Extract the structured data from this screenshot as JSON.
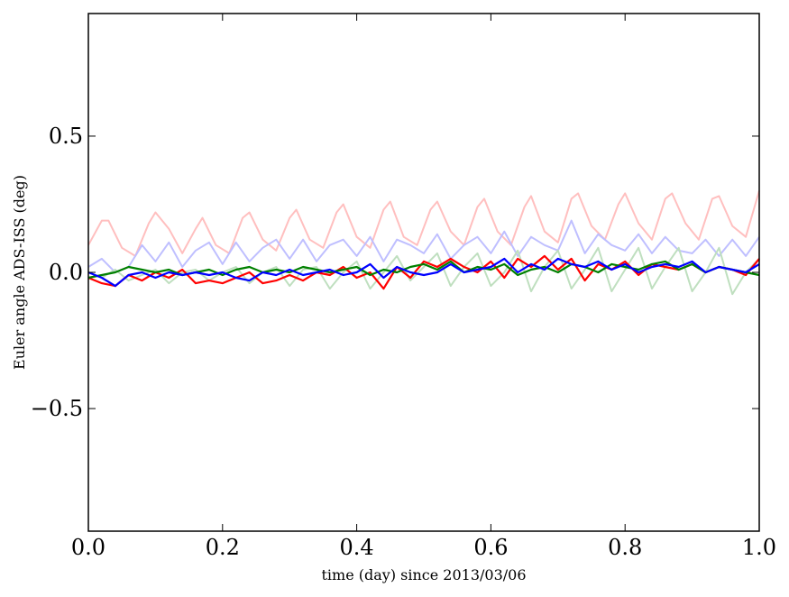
{
  "chart_data": {
    "type": "line",
    "title": "",
    "xlabel": "time (day) since 2013/03/06",
    "ylabel": "Euler angle ADS-ISS (deg)",
    "xlim": [
      0.0,
      1.0
    ],
    "ylim": [
      -0.95,
      0.95
    ],
    "xticks": [
      0.0,
      0.2,
      0.4,
      0.6,
      0.8,
      1.0
    ],
    "xtick_labels": [
      "0.0",
      "0.2",
      "0.4",
      "0.6",
      "0.8",
      "1.0"
    ],
    "yticks": [
      -0.5,
      0.0,
      0.5
    ],
    "ytick_labels": [
      "−0.5",
      "0.0",
      "0.5"
    ],
    "grid": false,
    "legend": "none",
    "series": [
      {
        "color": "#ffbfbf",
        "x": [
          0.0,
          0.02,
          0.03,
          0.05,
          0.07,
          0.09,
          0.1,
          0.12,
          0.14,
          0.16,
          0.17,
          0.19,
          0.21,
          0.23,
          0.24,
          0.26,
          0.28,
          0.3,
          0.31,
          0.33,
          0.35,
          0.37,
          0.38,
          0.4,
          0.42,
          0.44,
          0.45,
          0.47,
          0.49,
          0.51,
          0.52,
          0.54,
          0.56,
          0.58,
          0.59,
          0.61,
          0.63,
          0.65,
          0.66,
          0.68,
          0.7,
          0.72,
          0.73,
          0.75,
          0.77,
          0.79,
          0.8,
          0.82,
          0.84,
          0.86,
          0.87,
          0.89,
          0.91,
          0.93,
          0.94,
          0.96,
          0.98,
          1.0
        ],
        "y": [
          0.1,
          0.19,
          0.19,
          0.09,
          0.06,
          0.18,
          0.22,
          0.16,
          0.07,
          0.16,
          0.2,
          0.1,
          0.07,
          0.2,
          0.22,
          0.12,
          0.08,
          0.2,
          0.23,
          0.12,
          0.09,
          0.22,
          0.25,
          0.13,
          0.09,
          0.23,
          0.26,
          0.13,
          0.1,
          0.23,
          0.26,
          0.15,
          0.1,
          0.24,
          0.27,
          0.15,
          0.1,
          0.24,
          0.28,
          0.15,
          0.11,
          0.27,
          0.29,
          0.17,
          0.12,
          0.25,
          0.29,
          0.18,
          0.12,
          0.27,
          0.29,
          0.18,
          0.12,
          0.27,
          0.28,
          0.17,
          0.13,
          0.3
        ]
      },
      {
        "color": "#bfbfff",
        "x": [
          0.0,
          0.02,
          0.04,
          0.06,
          0.08,
          0.1,
          0.12,
          0.14,
          0.16,
          0.18,
          0.2,
          0.22,
          0.24,
          0.26,
          0.28,
          0.3,
          0.32,
          0.34,
          0.36,
          0.38,
          0.4,
          0.42,
          0.44,
          0.46,
          0.48,
          0.5,
          0.52,
          0.54,
          0.56,
          0.58,
          0.6,
          0.62,
          0.64,
          0.66,
          0.68,
          0.7,
          0.72,
          0.74,
          0.76,
          0.78,
          0.8,
          0.82,
          0.84,
          0.86,
          0.88,
          0.9,
          0.92,
          0.94,
          0.96,
          0.98,
          1.0
        ],
        "y": [
          0.02,
          0.05,
          0.0,
          0.02,
          0.1,
          0.04,
          0.11,
          0.02,
          0.08,
          0.11,
          0.03,
          0.11,
          0.04,
          0.09,
          0.12,
          0.05,
          0.12,
          0.04,
          0.1,
          0.12,
          0.06,
          0.13,
          0.04,
          0.12,
          0.1,
          0.07,
          0.14,
          0.05,
          0.1,
          0.13,
          0.07,
          0.15,
          0.06,
          0.13,
          0.1,
          0.08,
          0.19,
          0.07,
          0.14,
          0.1,
          0.08,
          0.14,
          0.07,
          0.13,
          0.08,
          0.07,
          0.12,
          0.06,
          0.12,
          0.06,
          0.13
        ]
      },
      {
        "color": "#bfdfbf",
        "x": [
          0.0,
          0.02,
          0.04,
          0.06,
          0.08,
          0.1,
          0.12,
          0.14,
          0.16,
          0.18,
          0.2,
          0.22,
          0.24,
          0.26,
          0.28,
          0.3,
          0.32,
          0.34,
          0.36,
          0.38,
          0.4,
          0.42,
          0.44,
          0.46,
          0.48,
          0.5,
          0.52,
          0.54,
          0.56,
          0.58,
          0.6,
          0.62,
          0.64,
          0.66,
          0.68,
          0.7,
          0.72,
          0.74,
          0.76,
          0.78,
          0.8,
          0.82,
          0.84,
          0.86,
          0.88,
          0.9,
          0.92,
          0.94,
          0.96,
          0.98,
          1.0
        ],
        "y": [
          0.0,
          -0.02,
          0.01,
          -0.03,
          -0.01,
          0.01,
          -0.04,
          0.0,
          0.01,
          -0.03,
          0.0,
          0.02,
          -0.04,
          0.0,
          0.02,
          -0.05,
          0.01,
          0.02,
          -0.06,
          0.0,
          0.04,
          -0.06,
          0.0,
          0.06,
          -0.03,
          0.02,
          0.07,
          -0.05,
          0.02,
          0.07,
          -0.05,
          0.0,
          0.08,
          -0.07,
          0.02,
          0.08,
          -0.06,
          0.01,
          0.09,
          -0.07,
          0.01,
          0.09,
          -0.06,
          0.02,
          0.09,
          -0.07,
          0.0,
          0.09,
          -0.08,
          0.0,
          0.05
        ]
      },
      {
        "color": "#ff0000",
        "x": [
          0.0,
          0.02,
          0.04,
          0.06,
          0.08,
          0.1,
          0.12,
          0.14,
          0.16,
          0.18,
          0.2,
          0.22,
          0.24,
          0.26,
          0.28,
          0.3,
          0.32,
          0.34,
          0.36,
          0.38,
          0.4,
          0.42,
          0.44,
          0.46,
          0.48,
          0.5,
          0.52,
          0.54,
          0.56,
          0.58,
          0.6,
          0.62,
          0.64,
          0.66,
          0.68,
          0.7,
          0.72,
          0.74,
          0.76,
          0.78,
          0.8,
          0.82,
          0.84,
          0.86,
          0.88,
          0.9,
          0.92,
          0.94,
          0.96,
          0.98,
          1.0
        ],
        "y": [
          -0.02,
          -0.04,
          -0.05,
          -0.01,
          -0.03,
          0.0,
          -0.02,
          0.01,
          -0.04,
          -0.03,
          -0.04,
          -0.02,
          0.0,
          -0.04,
          -0.03,
          -0.01,
          -0.03,
          0.0,
          -0.01,
          0.02,
          -0.02,
          0.0,
          -0.06,
          0.02,
          -0.02,
          0.04,
          0.02,
          0.05,
          0.02,
          0.0,
          0.04,
          -0.02,
          0.05,
          0.02,
          0.06,
          0.01,
          0.05,
          -0.03,
          0.03,
          0.01,
          0.04,
          -0.01,
          0.03,
          0.02,
          0.01,
          0.03,
          0.0,
          0.02,
          0.01,
          -0.01,
          0.05
        ]
      },
      {
        "color": "#008000",
        "x": [
          0.0,
          0.02,
          0.04,
          0.06,
          0.08,
          0.1,
          0.12,
          0.14,
          0.16,
          0.18,
          0.2,
          0.22,
          0.24,
          0.26,
          0.28,
          0.3,
          0.32,
          0.34,
          0.36,
          0.38,
          0.4,
          0.42,
          0.44,
          0.46,
          0.48,
          0.5,
          0.52,
          0.54,
          0.56,
          0.58,
          0.6,
          0.62,
          0.64,
          0.66,
          0.68,
          0.7,
          0.72,
          0.74,
          0.76,
          0.78,
          0.8,
          0.82,
          0.84,
          0.86,
          0.88,
          0.9,
          0.92,
          0.94,
          0.96,
          0.98,
          1.0
        ],
        "y": [
          -0.02,
          -0.01,
          0.0,
          0.02,
          0.01,
          0.0,
          0.01,
          -0.01,
          0.0,
          0.01,
          -0.01,
          0.01,
          0.02,
          0.0,
          0.01,
          0.0,
          0.02,
          0.01,
          0.0,
          0.01,
          0.02,
          -0.01,
          0.01,
          0.0,
          0.02,
          0.03,
          0.01,
          0.04,
          0.0,
          0.02,
          0.01,
          0.03,
          -0.01,
          0.01,
          0.02,
          0.0,
          0.03,
          0.02,
          0.0,
          0.03,
          0.02,
          0.01,
          0.03,
          0.04,
          0.01,
          0.03,
          0.0,
          0.02,
          0.01,
          0.0,
          -0.01
        ]
      },
      {
        "color": "#0000ff",
        "x": [
          0.0,
          0.02,
          0.04,
          0.06,
          0.08,
          0.1,
          0.12,
          0.14,
          0.16,
          0.18,
          0.2,
          0.22,
          0.24,
          0.26,
          0.28,
          0.3,
          0.32,
          0.34,
          0.36,
          0.38,
          0.4,
          0.42,
          0.44,
          0.46,
          0.48,
          0.5,
          0.52,
          0.54,
          0.56,
          0.58,
          0.6,
          0.62,
          0.64,
          0.66,
          0.68,
          0.7,
          0.72,
          0.74,
          0.76,
          0.78,
          0.8,
          0.82,
          0.84,
          0.86,
          0.88,
          0.9,
          0.92,
          0.94,
          0.96,
          0.98,
          1.0
        ],
        "y": [
          0.0,
          -0.02,
          -0.05,
          -0.01,
          0.0,
          -0.02,
          0.0,
          -0.01,
          0.0,
          -0.01,
          0.0,
          -0.02,
          -0.03,
          0.0,
          -0.01,
          0.01,
          -0.01,
          0.0,
          0.01,
          -0.01,
          0.0,
          0.03,
          -0.02,
          0.02,
          0.0,
          -0.01,
          0.0,
          0.03,
          0.0,
          0.01,
          0.02,
          0.05,
          0.0,
          0.03,
          0.01,
          0.05,
          0.03,
          0.02,
          0.04,
          0.01,
          0.03,
          0.0,
          0.02,
          0.03,
          0.02,
          0.04,
          0.0,
          0.02,
          0.01,
          0.0,
          0.03
        ]
      }
    ]
  }
}
